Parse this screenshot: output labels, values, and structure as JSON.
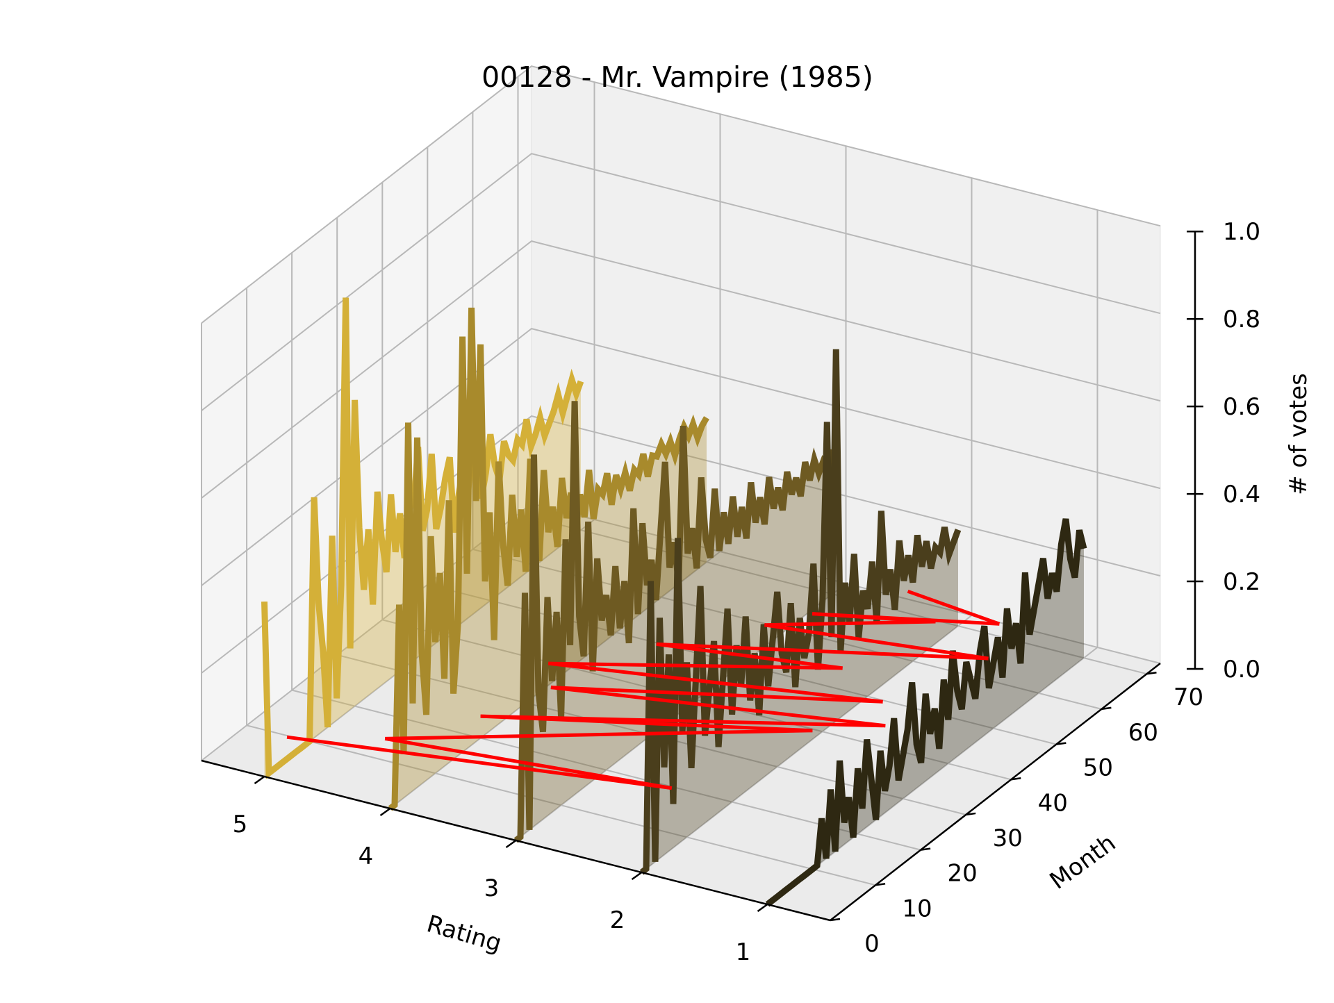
{
  "chart_data": {
    "type": "line",
    "title": "00128 - Mr. Vampire (1985)",
    "xlabel": "Rating",
    "ylabel": "Month",
    "zlabel": "# of votes",
    "x_ticks": [
      "5",
      "4",
      "3",
      "2",
      "1"
    ],
    "y_ticks": [
      "0",
      "10",
      "20",
      "30",
      "40",
      "50",
      "60",
      "70"
    ],
    "z_ticks": [
      "0.0",
      "0.2",
      "0.4",
      "0.6",
      "0.8",
      "1.0"
    ],
    "xlim": [
      0.5,
      5.5
    ],
    "ylim": [
      0,
      73
    ],
    "zlim": [
      0,
      1.0
    ],
    "grid": true,
    "series": [
      {
        "rating": 5,
        "color": "#d4b038",
        "months": [
          0,
          1,
          2,
          3,
          4,
          5,
          6,
          7,
          8,
          9,
          10,
          11,
          12,
          13,
          14,
          15,
          16,
          17,
          18,
          19,
          20,
          21,
          22,
          23,
          24,
          25,
          26,
          27,
          28,
          29,
          30,
          31,
          32,
          33,
          34,
          35,
          36,
          37,
          38,
          39,
          40,
          41,
          42,
          43,
          44,
          45,
          46,
          47,
          48,
          49,
          50,
          51,
          52,
          53,
          54,
          55,
          56,
          57,
          58,
          59,
          60,
          61,
          62,
          63,
          64,
          65,
          66,
          67,
          68,
          69,
          70
        ],
        "values": [
          0.4,
          0.0,
          0.0,
          0.0,
          0.0,
          0.0,
          0.0,
          0.0,
          0.0,
          0.0,
          0.0,
          0.55,
          0.3,
          0.18,
          0.0,
          0.43,
          0.05,
          0.3,
          0.95,
          0.14,
          0.7,
          0.4,
          0.25,
          0.38,
          0.2,
          0.45,
          0.33,
          0.25,
          0.42,
          0.28,
          0.36,
          0.25,
          0.4,
          0.35,
          0.48,
          0.28,
          0.32,
          0.44,
          0.26,
          0.3,
          0.36,
          0.4,
          0.22,
          0.3,
          0.35,
          0.28,
          0.4,
          0.33,
          0.25,
          0.3,
          0.38,
          0.3,
          0.26,
          0.34,
          0.3,
          0.28,
          0.32,
          0.3,
          0.35,
          0.28,
          0.3,
          0.33,
          0.28,
          0.3,
          0.32,
          0.35,
          0.3,
          0.33,
          0.36,
          0.32,
          0.34
        ]
      },
      {
        "rating": 4,
        "color": "#a88a2c",
        "months": [
          0,
          1,
          2,
          3,
          4,
          5,
          6,
          7,
          8,
          9,
          10,
          11,
          12,
          13,
          14,
          15,
          16,
          17,
          18,
          19,
          20,
          21,
          22,
          23,
          24,
          25,
          26,
          27,
          28,
          29,
          30,
          31,
          32,
          33,
          34,
          35,
          36,
          37,
          38,
          39,
          40,
          41,
          42,
          43,
          44,
          45,
          46,
          47,
          48,
          49,
          50,
          51,
          52,
          53,
          54,
          55,
          56,
          57,
          58,
          59,
          60,
          61,
          62,
          63,
          64,
          65,
          66,
          67,
          68,
          69,
          70
        ],
        "values": [
          0.0,
          0.0,
          0.45,
          0.1,
          0.85,
          0.2,
          0.8,
          0.3,
          0.15,
          0.55,
          0.3,
          0.45,
          0.2,
          0.6,
          0.15,
          0.3,
          0.95,
          0.4,
          1.0,
          0.55,
          0.9,
          0.35,
          0.5,
          0.2,
          0.6,
          0.4,
          0.3,
          0.5,
          0.35,
          0.45,
          0.3,
          0.55,
          0.4,
          0.3,
          0.5,
          0.35,
          0.4,
          0.3,
          0.45,
          0.35,
          0.4,
          0.3,
          0.38,
          0.32,
          0.42,
          0.3,
          0.36,
          0.34,
          0.38,
          0.3,
          0.36,
          0.32,
          0.35,
          0.3,
          0.34,
          0.32,
          0.36,
          0.3,
          0.34,
          0.33,
          0.35,
          0.32,
          0.34,
          0.3,
          0.33,
          0.35,
          0.32,
          0.34,
          0.3,
          0.32,
          0.33
        ]
      },
      {
        "rating": 3,
        "color": "#6e5a22",
        "months": [
          0,
          1,
          2,
          3,
          4,
          5,
          6,
          7,
          8,
          9,
          10,
          11,
          12,
          13,
          14,
          15,
          16,
          17,
          18,
          19,
          20,
          21,
          22,
          23,
          24,
          25,
          26,
          27,
          28,
          29,
          30,
          31,
          32,
          33,
          34,
          35,
          36,
          37,
          38,
          39,
          40,
          41,
          42,
          43,
          44,
          45,
          46,
          47,
          48,
          49,
          50,
          51,
          52,
          53,
          54,
          55,
          56,
          57,
          58,
          59,
          60,
          61,
          62,
          63,
          64,
          65,
          66,
          67,
          68,
          69,
          70
        ],
        "values": [
          0.0,
          0.0,
          0.55,
          0.0,
          0.85,
          0.3,
          0.2,
          0.5,
          0.3,
          0.45,
          0.2,
          0.6,
          0.35,
          0.9,
          0.4,
          0.3,
          0.6,
          0.25,
          0.5,
          0.35,
          0.4,
          0.3,
          0.45,
          0.3,
          0.4,
          0.25,
          0.55,
          0.3,
          0.5,
          0.35,
          0.4,
          0.3,
          0.45,
          0.6,
          0.35,
          0.4,
          0.3,
          0.65,
          0.35,
          0.4,
          0.3,
          0.5,
          0.35,
          0.3,
          0.45,
          0.3,
          0.38,
          0.3,
          0.4,
          0.3,
          0.36,
          0.28,
          0.4,
          0.3,
          0.35,
          0.28,
          0.38,
          0.3,
          0.34,
          0.28,
          0.36,
          0.3,
          0.33,
          0.28,
          0.35,
          0.3,
          0.34,
          0.3,
          0.32,
          0.3,
          0.33
        ]
      },
      {
        "rating": 2,
        "color": "#4a3e1c",
        "months": [
          0,
          1,
          2,
          3,
          4,
          5,
          6,
          7,
          8,
          9,
          10,
          11,
          12,
          13,
          14,
          15,
          16,
          17,
          18,
          19,
          20,
          21,
          22,
          23,
          24,
          25,
          26,
          27,
          28,
          29,
          30,
          31,
          32,
          33,
          34,
          35,
          36,
          37,
          38,
          39,
          40,
          41,
          42,
          43,
          44,
          45,
          46,
          47,
          48,
          49,
          50,
          51,
          52,
          53,
          54,
          55,
          56,
          57,
          58,
          59,
          60,
          61,
          62,
          63,
          64,
          65,
          66,
          67,
          68,
          69,
          70
        ],
        "values": [
          0.0,
          0.0,
          0.65,
          0.0,
          0.55,
          0.2,
          0.45,
          0.1,
          0.7,
          0.25,
          0.4,
          0.15,
          0.35,
          0.55,
          0.2,
          0.3,
          0.4,
          0.15,
          0.3,
          0.45,
          0.2,
          0.35,
          0.25,
          0.4,
          0.2,
          0.3,
          0.15,
          0.35,
          0.2,
          0.3,
          0.4,
          0.25,
          0.2,
          0.35,
          0.15,
          0.3,
          0.2,
          0.25,
          0.4,
          0.15,
          0.3,
          0.7,
          0.2,
          0.85,
          0.15,
          0.3,
          0.2,
          0.35,
          0.15,
          0.25,
          0.2,
          0.3,
          0.15,
          0.4,
          0.2,
          0.25,
          0.15,
          0.3,
          0.2,
          0.25,
          0.18,
          0.28,
          0.2,
          0.25,
          0.18,
          0.22,
          0.2,
          0.25,
          0.18,
          0.2,
          0.22
        ]
      },
      {
        "rating": 1,
        "color": "#2e2812",
        "months": [
          0,
          1,
          2,
          3,
          4,
          5,
          6,
          7,
          8,
          9,
          10,
          11,
          12,
          13,
          14,
          15,
          16,
          17,
          18,
          19,
          20,
          21,
          22,
          23,
          24,
          25,
          26,
          27,
          28,
          29,
          30,
          31,
          32,
          33,
          34,
          35,
          36,
          37,
          38,
          39,
          40,
          41,
          42,
          43,
          44,
          45,
          46,
          47,
          48,
          49,
          50,
          51,
          52,
          53,
          54,
          55,
          56,
          57,
          58,
          59,
          60,
          61,
          62,
          63,
          64,
          65,
          66,
          67,
          68,
          69,
          70
        ],
        "values": [
          0.0,
          0.0,
          0.0,
          0.0,
          0.0,
          0.0,
          0.0,
          0.0,
          0.0,
          0.0,
          0.0,
          0.0,
          0.1,
          0.0,
          0.15,
          0.0,
          0.2,
          0.05,
          0.1,
          0.0,
          0.15,
          0.05,
          0.2,
          0.1,
          0.0,
          0.15,
          0.05,
          0.1,
          0.2,
          0.05,
          0.1,
          0.15,
          0.25,
          0.1,
          0.05,
          0.2,
          0.1,
          0.15,
          0.05,
          0.2,
          0.1,
          0.25,
          0.15,
          0.1,
          0.2,
          0.15,
          0.1,
          0.2,
          0.25,
          0.1,
          0.15,
          0.2,
          0.1,
          0.25,
          0.15,
          0.2,
          0.1,
          0.3,
          0.15,
          0.2,
          0.25,
          0.3,
          0.2,
          0.25,
          0.2,
          0.3,
          0.35,
          0.25,
          0.2,
          0.3,
          0.25
        ]
      }
    ],
    "overlay": {
      "color": "#ff0000",
      "description_hidden": true,
      "segments": [
        [
          5.0,
          5,
          0.05,
          2.3,
          15,
          0.05
        ],
        [
          2.3,
          15,
          0.05,
          4.4,
          10,
          0.05
        ],
        [
          4.4,
          10,
          0.05,
          1.9,
          35,
          0.05
        ],
        [
          1.9,
          35,
          0.05,
          4.0,
          20,
          0.05
        ],
        [
          4.0,
          20,
          0.05,
          1.5,
          40,
          0.05
        ],
        [
          1.5,
          40,
          0.05,
          3.8,
          30,
          0.05
        ],
        [
          3.8,
          30,
          0.05,
          1.7,
          45,
          0.05
        ],
        [
          1.7,
          45,
          0.05,
          4.0,
          35,
          0.05
        ],
        [
          4.0,
          35,
          0.05,
          2.2,
          50,
          0.05
        ],
        [
          2.2,
          50,
          0.05,
          3.5,
          45,
          0.05
        ],
        [
          3.5,
          45,
          0.05,
          1.4,
          60,
          0.05
        ],
        [
          1.4,
          60,
          0.05,
          3.0,
          55,
          0.05
        ],
        [
          3.0,
          55,
          0.05,
          2.0,
          65,
          0.05
        ],
        [
          2.0,
          65,
          0.05,
          2.8,
          60,
          0.05
        ],
        [
          2.8,
          60,
          0.05,
          1.6,
          68,
          0.05
        ],
        [
          1.6,
          68,
          0.05,
          2.4,
          70,
          0.05
        ]
      ]
    }
  }
}
